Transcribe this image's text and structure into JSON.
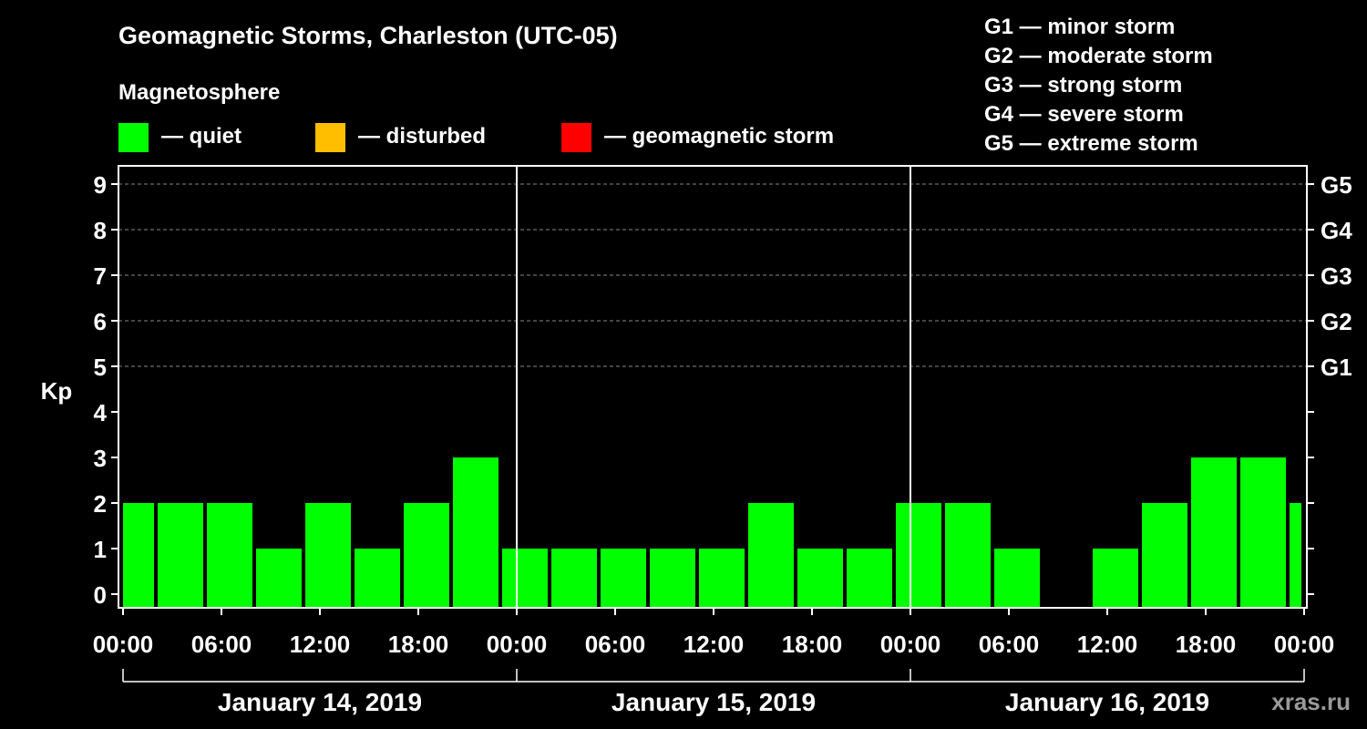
{
  "header": {
    "title": "Geomagnetic Storms, Charleston (UTC-05)",
    "subtitle": "Magnetosphere"
  },
  "legend": [
    {
      "label": "— quiet",
      "color": "#00ff00"
    },
    {
      "label": "— disturbed",
      "color": "#ffbf00"
    },
    {
      "label": "— geomagnetic storm",
      "color": "#ff0000"
    }
  ],
  "storm_scale": [
    "G1 — minor storm",
    "G2 — moderate storm",
    "G3 — strong storm",
    "G4 — severe storm",
    "G5 — extreme storm"
  ],
  "watermark": "xras.ru",
  "chart_data": {
    "type": "bar",
    "ylabel": "Kp",
    "ylim": [
      0,
      9
    ],
    "yticks": [
      "0",
      "1",
      "2",
      "3",
      "4",
      "5",
      "6",
      "7",
      "8",
      "9"
    ],
    "right_ticks": [
      "G1",
      "G2",
      "G3",
      "G4",
      "G5"
    ],
    "grid": "dashed horizontal lines at Kp 5-9",
    "xtick_labels": [
      "00:00",
      "06:00",
      "12:00",
      "18:00",
      "00:00",
      "06:00",
      "12:00",
      "18:00",
      "00:00",
      "06:00",
      "12:00",
      "18:00",
      "00:00"
    ],
    "day_labels": [
      "January 14, 2019",
      "January 15, 2019",
      "January 16, 2019"
    ],
    "bar_start_hours": [
      -1,
      2,
      5,
      8,
      11,
      14,
      17,
      20,
      23,
      26,
      29,
      32,
      35,
      38,
      41,
      44,
      47,
      50,
      53,
      56,
      59,
      62,
      65,
      68,
      71
    ],
    "values": [
      2,
      2,
      2,
      1,
      2,
      1,
      2,
      3,
      1,
      1,
      1,
      1,
      1,
      2,
      1,
      1,
      2,
      2,
      1,
      0,
      1,
      2,
      3,
      3,
      2
    ],
    "bar_color": "#00ff00"
  }
}
